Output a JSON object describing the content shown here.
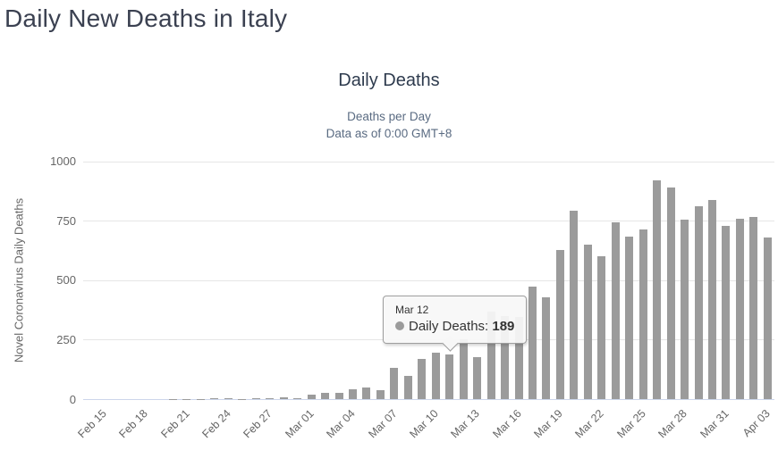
{
  "page": {
    "title": "Daily New Deaths in Italy"
  },
  "chart": {
    "title": "Daily Deaths",
    "subtitle_line1": "Deaths per Day",
    "subtitle_line2": "Data as of 0:00 GMT+8",
    "y_axis_title": "Novel Coronavirus Daily Deaths",
    "colors": {
      "bar": "#9b9b9b",
      "gridline": "#e6e6e6",
      "x_axis_line": "#ccd6eb",
      "axis_label": "#666666",
      "title": "#2e3b4e",
      "subtitle": "#5a6b82"
    }
  },
  "tooltip": {
    "header": "Mar 12",
    "series_label": "Daily Deaths:",
    "value": "189",
    "marker_color": "#9b9b9b"
  },
  "chart_data": {
    "type": "bar",
    "title": "Daily Deaths",
    "subtitle": "Deaths per Day - Data as of 0:00 GMT+8",
    "series_name": "Daily Deaths",
    "xlabel": "",
    "ylabel": "Novel Coronavirus Daily Deaths",
    "ylim": [
      0,
      1000
    ],
    "yticks": [
      0,
      250,
      500,
      750,
      1000
    ],
    "grid": true,
    "legend": false,
    "x_tick_interval": 3,
    "categories": [
      "Feb 15",
      "Feb 16",
      "Feb 17",
      "Feb 18",
      "Feb 19",
      "Feb 20",
      "Feb 21",
      "Feb 22",
      "Feb 23",
      "Feb 24",
      "Feb 25",
      "Feb 26",
      "Feb 27",
      "Feb 28",
      "Feb 29",
      "Mar 01",
      "Mar 02",
      "Mar 03",
      "Mar 04",
      "Mar 05",
      "Mar 06",
      "Mar 07",
      "Mar 08",
      "Mar 09",
      "Mar 10",
      "Mar 11",
      "Mar 12",
      "Mar 13",
      "Mar 14",
      "Mar 15",
      "Mar 16",
      "Mar 17",
      "Mar 18",
      "Mar 19",
      "Mar 20",
      "Mar 21",
      "Mar 22",
      "Mar 23",
      "Mar 24",
      "Mar 25",
      "Mar 26",
      "Mar 27",
      "Mar 28",
      "Mar 29",
      "Mar 30",
      "Mar 31",
      "Apr 01",
      "Apr 02",
      "Apr 03",
      "Apr 04"
    ],
    "values": [
      0,
      0,
      0,
      0,
      0,
      0,
      1,
      1,
      1,
      4,
      3,
      2,
      5,
      4,
      8,
      5,
      18,
      27,
      28,
      41,
      49,
      36,
      133,
      97,
      168,
      196,
      189,
      250,
      175,
      368,
      349,
      345,
      475,
      427,
      627,
      793,
      651,
      601,
      743,
      683,
      712,
      919,
      889,
      756,
      812,
      837,
      727,
      760,
      766,
      681
    ],
    "highlighted_point": {
      "category": "Mar 12",
      "value": 189
    }
  }
}
